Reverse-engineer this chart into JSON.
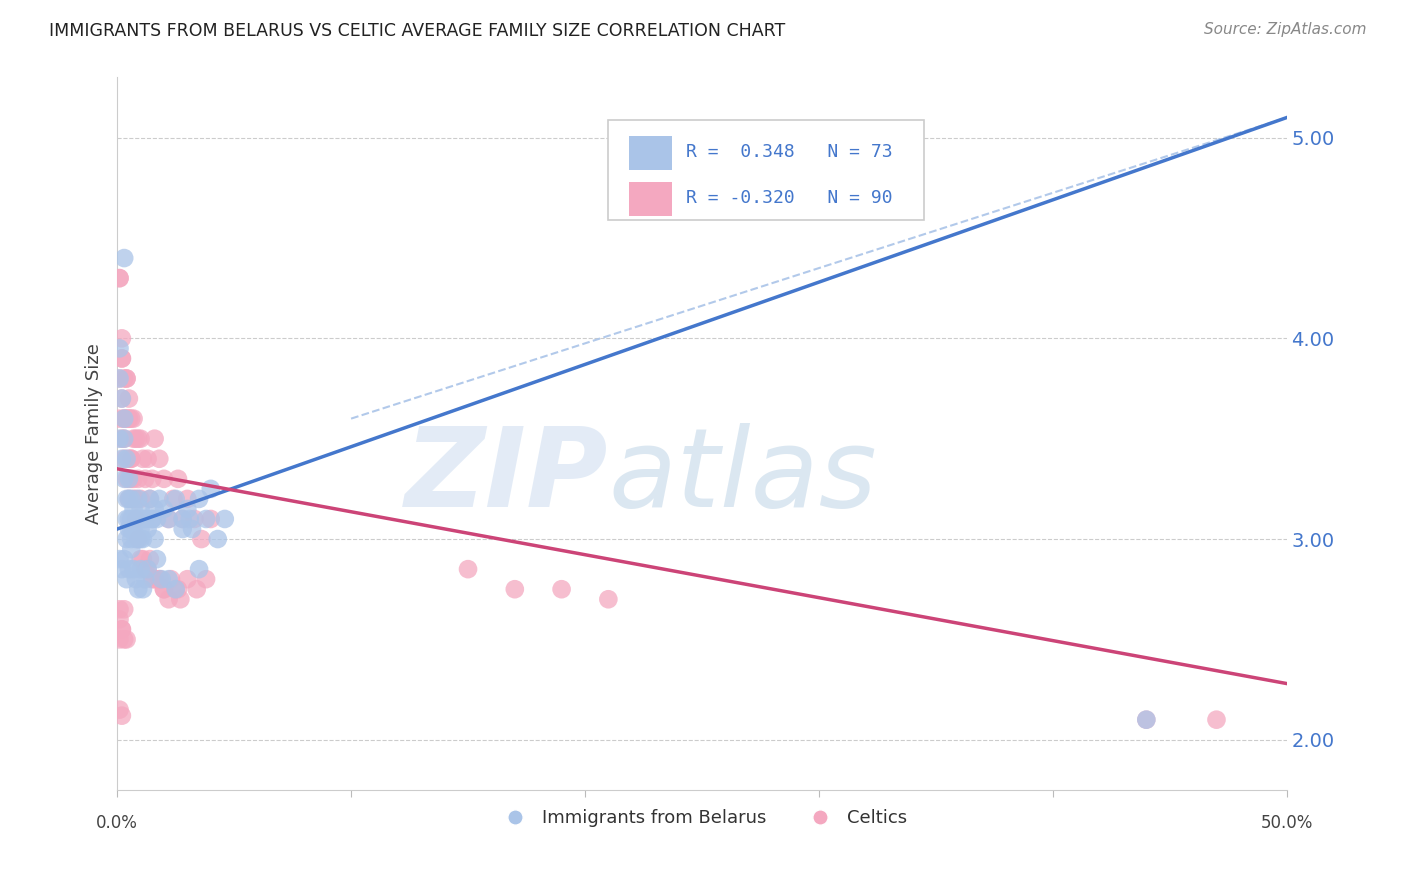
{
  "title": "IMMIGRANTS FROM BELARUS VS CELTIC AVERAGE FAMILY SIZE CORRELATION CHART",
  "source": "Source: ZipAtlas.com",
  "ylabel": "Average Family Size",
  "yticks": [
    2.0,
    3.0,
    4.0,
    5.0
  ],
  "xlim": [
    0.0,
    0.5
  ],
  "ylim": [
    1.75,
    5.3
  ],
  "scatter_color_blue": "#aac4e8",
  "scatter_color_pink": "#f4a8c0",
  "line_color_blue": "#4477cc",
  "line_color_pink": "#cc4477",
  "line_color_dash": "#aac4e8",
  "legend_color1": "#aac4e8",
  "legend_color2": "#f4a8c0",
  "legend_label_blue": "Immigrants from Belarus",
  "legend_label_pink": "Celtics",
  "blue_line": [
    0.0,
    3.05,
    0.5,
    5.1
  ],
  "pink_line": [
    0.0,
    3.35,
    0.5,
    2.28
  ],
  "dash_line": [
    0.1,
    3.6,
    0.5,
    5.1
  ],
  "blue_x": [
    0.001,
    0.001,
    0.002,
    0.002,
    0.003,
    0.003,
    0.003,
    0.004,
    0.004,
    0.004,
    0.004,
    0.005,
    0.005,
    0.005,
    0.005,
    0.006,
    0.006,
    0.006,
    0.006,
    0.007,
    0.007,
    0.008,
    0.008,
    0.009,
    0.009,
    0.009,
    0.01,
    0.01,
    0.01,
    0.011,
    0.011,
    0.012,
    0.013,
    0.014,
    0.015,
    0.016,
    0.016,
    0.017,
    0.018,
    0.02,
    0.022,
    0.025,
    0.028,
    0.03,
    0.032,
    0.035,
    0.038,
    0.04,
    0.043,
    0.046,
    0.001,
    0.002,
    0.003,
    0.004,
    0.005,
    0.006,
    0.007,
    0.008,
    0.009,
    0.01,
    0.011,
    0.012,
    0.013,
    0.015,
    0.017,
    0.019,
    0.022,
    0.025,
    0.028,
    0.031,
    0.035,
    0.44,
    0.001,
    0.003
  ],
  "blue_y": [
    3.8,
    3.5,
    3.7,
    3.4,
    3.6,
    3.3,
    3.5,
    3.4,
    3.2,
    3.1,
    3.0,
    3.3,
    3.2,
    3.1,
    3.05,
    3.2,
    3.1,
    3.05,
    3.0,
    3.15,
    3.05,
    3.1,
    3.0,
    3.2,
    3.1,
    3.0,
    3.15,
    3.05,
    3.0,
    3.1,
    3.0,
    3.1,
    3.05,
    3.2,
    3.1,
    3.0,
    3.15,
    3.1,
    3.2,
    3.15,
    3.1,
    3.2,
    3.1,
    3.15,
    3.05,
    3.2,
    3.1,
    3.25,
    3.0,
    3.1,
    2.9,
    2.85,
    2.9,
    2.8,
    2.85,
    2.95,
    2.85,
    2.8,
    2.75,
    2.85,
    2.75,
    2.8,
    2.85,
    3.1,
    2.9,
    2.8,
    2.8,
    2.75,
    3.05,
    3.1,
    2.85,
    2.1,
    3.95,
    4.4
  ],
  "pink_x": [
    0.001,
    0.001,
    0.001,
    0.002,
    0.002,
    0.002,
    0.002,
    0.003,
    0.003,
    0.003,
    0.003,
    0.004,
    0.004,
    0.004,
    0.005,
    0.005,
    0.005,
    0.005,
    0.006,
    0.006,
    0.006,
    0.007,
    0.007,
    0.007,
    0.008,
    0.008,
    0.009,
    0.009,
    0.01,
    0.01,
    0.011,
    0.012,
    0.013,
    0.014,
    0.015,
    0.016,
    0.018,
    0.02,
    0.022,
    0.024,
    0.026,
    0.028,
    0.03,
    0.033,
    0.036,
    0.04,
    0.001,
    0.002,
    0.003,
    0.004,
    0.005,
    0.006,
    0.007,
    0.008,
    0.009,
    0.01,
    0.011,
    0.012,
    0.014,
    0.016,
    0.018,
    0.02,
    0.023,
    0.026,
    0.03,
    0.034,
    0.038,
    0.001,
    0.001,
    0.002,
    0.001,
    0.001,
    0.002,
    0.002,
    0.003,
    0.003,
    0.004,
    0.013,
    0.015,
    0.018,
    0.02,
    0.022,
    0.025,
    0.027,
    0.15,
    0.17,
    0.19,
    0.21,
    0.44,
    0.47
  ],
  "pink_y": [
    3.8,
    3.6,
    4.3,
    3.7,
    3.5,
    3.9,
    4.0,
    3.6,
    3.4,
    3.8,
    3.5,
    3.6,
    3.3,
    3.8,
    3.6,
    3.4,
    3.2,
    3.7,
    3.4,
    3.6,
    3.3,
    3.5,
    3.3,
    3.6,
    3.2,
    3.5,
    3.3,
    3.5,
    3.2,
    3.5,
    3.4,
    3.3,
    3.4,
    3.2,
    3.3,
    3.5,
    3.4,
    3.3,
    3.1,
    3.2,
    3.3,
    3.1,
    3.2,
    3.1,
    3.0,
    3.1,
    4.3,
    3.9,
    3.6,
    3.8,
    3.6,
    3.4,
    3.2,
    3.1,
    3.0,
    2.9,
    2.9,
    2.85,
    2.9,
    2.8,
    2.8,
    2.75,
    2.8,
    2.75,
    2.8,
    2.75,
    2.8,
    2.6,
    2.5,
    2.55,
    2.65,
    2.15,
    2.12,
    2.55,
    2.5,
    2.65,
    2.5,
    2.85,
    2.8,
    2.8,
    2.75,
    2.7,
    2.75,
    2.7,
    2.85,
    2.75,
    2.75,
    2.7,
    2.1,
    2.1
  ]
}
